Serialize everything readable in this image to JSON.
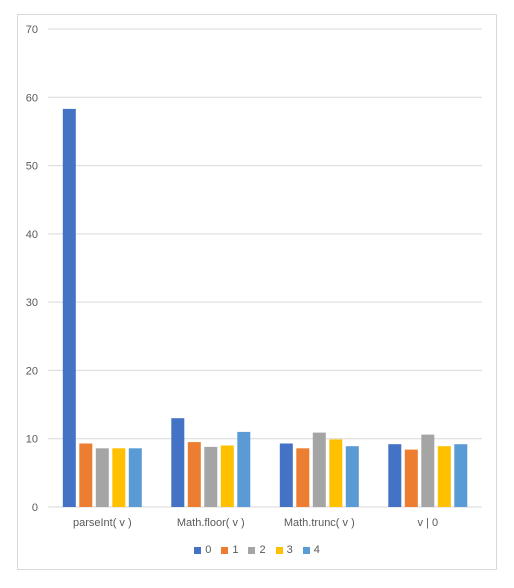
{
  "chart_data": {
    "type": "bar",
    "title": "",
    "xlabel": "",
    "ylabel": "",
    "categories": [
      "parseInt( v )",
      "Math.floor( v )",
      "Math.trunc( v )",
      "v | 0"
    ],
    "ylim": [
      0,
      70
    ],
    "yticks": [
      0,
      10,
      20,
      30,
      40,
      50,
      60,
      70
    ],
    "grid": true,
    "legend_position": "bottom",
    "series": [
      {
        "name": "0",
        "color": "#4472C4",
        "values": [
          58.3,
          13.0,
          9.3,
          9.2
        ]
      },
      {
        "name": "1",
        "color": "#ED7D31",
        "values": [
          9.3,
          9.5,
          8.6,
          8.4
        ]
      },
      {
        "name": "2",
        "color": "#A5A5A5",
        "values": [
          8.6,
          8.8,
          10.9,
          10.6
        ]
      },
      {
        "name": "3",
        "color": "#FFC000",
        "values": [
          8.6,
          9.0,
          9.9,
          8.9
        ]
      },
      {
        "name": "4",
        "color": "#5B9BD5",
        "values": [
          8.6,
          11.0,
          8.9,
          9.2
        ]
      }
    ]
  }
}
